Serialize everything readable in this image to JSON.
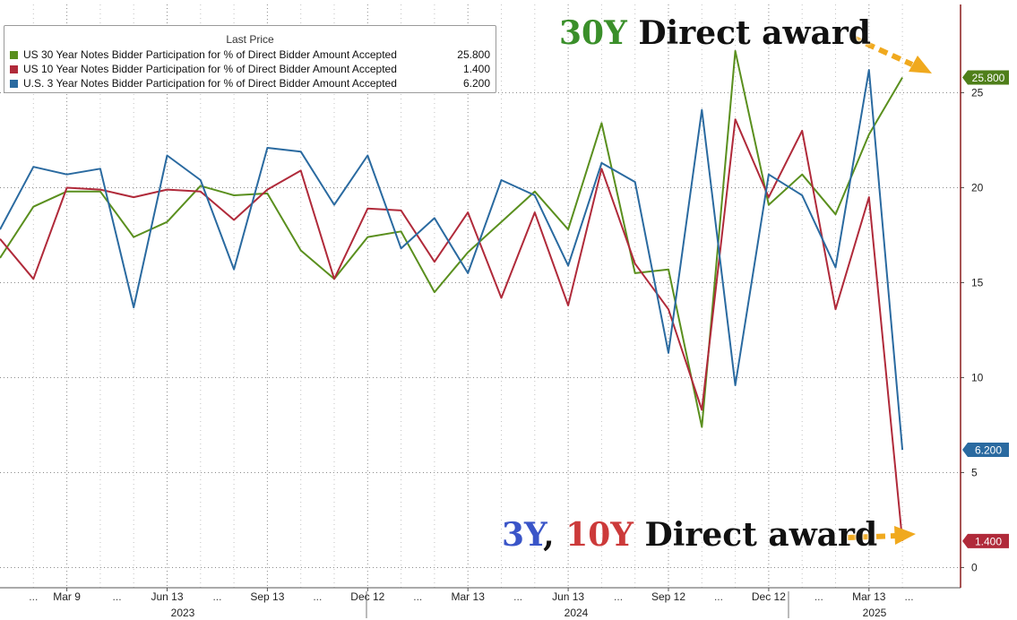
{
  "chart_data": {
    "type": "line",
    "legend_title": "Last Price",
    "legend_placement": "top-left",
    "grid": true,
    "ylim": [
      0,
      29
    ],
    "y_ticks": [
      0,
      5,
      10,
      15,
      20,
      25
    ],
    "x_labels": [
      "Mar 9",
      "Jun 13",
      "Sep 13",
      "Dec 12",
      "Mar 13",
      "Jun 13",
      "Sep 12",
      "Dec 12",
      "Mar 13"
    ],
    "year_labels": [
      "2023",
      "2024",
      "2025"
    ],
    "x": [
      "Jan 2023",
      "Feb 2023",
      "Mar 2023",
      "Apr 2023",
      "May 2023",
      "Jun 2023",
      "Jul 2023",
      "Aug 2023",
      "Sep 2023",
      "Oct 2023",
      "Nov 2023",
      "Dec 2023",
      "Jan 2024",
      "Feb 2024",
      "Mar 2024",
      "Apr 2024",
      "May 2024",
      "Jun 2024",
      "Jul 2024",
      "Aug 2024",
      "Sep 2024",
      "Oct 2024",
      "Nov 2024",
      "Dec 2024",
      "Jan 2025",
      "Feb 2025",
      "Mar 2025",
      "Apr 2025"
    ],
    "series": [
      {
        "name": "US 30 Year Notes Bidder Participation for % of Direct Bidder Amount Accepted",
        "last_value": "25.800",
        "color": "#5a8f1e",
        "values": [
          16.3,
          19.0,
          19.8,
          19.8,
          17.4,
          18.2,
          20.1,
          19.6,
          19.7,
          16.7,
          15.2,
          17.4,
          17.7,
          14.5,
          16.6,
          18.2,
          19.8,
          17.8,
          23.4,
          15.5,
          15.7,
          7.4,
          27.2,
          19.1,
          20.7,
          18.6,
          22.8,
          25.8
        ]
      },
      {
        "name": "US 10 Year Notes Bidder Participation for % of Direct Bidder Amount Accepted",
        "last_value": "1.400",
        "color": "#b02a3a",
        "values": [
          17.3,
          15.2,
          20.0,
          19.9,
          19.5,
          19.9,
          19.8,
          18.3,
          19.9,
          20.9,
          15.2,
          18.9,
          18.8,
          16.1,
          18.7,
          14.2,
          18.7,
          13.8,
          21.0,
          16.0,
          13.6,
          8.3,
          23.6,
          19.5,
          23.0,
          13.6,
          19.5,
          1.4
        ]
      },
      {
        "name": "U.S. 3 Year Notes Bidder Participation for % of Direct Bidder Amount Accepted",
        "last_value": "6.200",
        "color": "#2a6aa0",
        "values": [
          17.8,
          21.1,
          20.7,
          21.0,
          13.7,
          21.7,
          20.4,
          15.7,
          22.1,
          21.9,
          19.1,
          21.7,
          16.8,
          18.4,
          15.5,
          20.4,
          19.6,
          15.9,
          21.3,
          20.3,
          11.3,
          24.1,
          9.6,
          20.7,
          19.6,
          15.8,
          26.2,
          6.2
        ]
      }
    ]
  },
  "annotations": {
    "top": {
      "part1": "30Y",
      "part1_color": "#3a8f2a",
      "part2": " Direct award"
    },
    "bottom": {
      "part1": "3Y",
      "part1_color": "#3a55c8",
      "part2": ", ",
      "part3": "10Y",
      "part3_color": "#cc3a3a",
      "part4": " Direct award"
    },
    "arrow_color": "#f0a91e"
  }
}
